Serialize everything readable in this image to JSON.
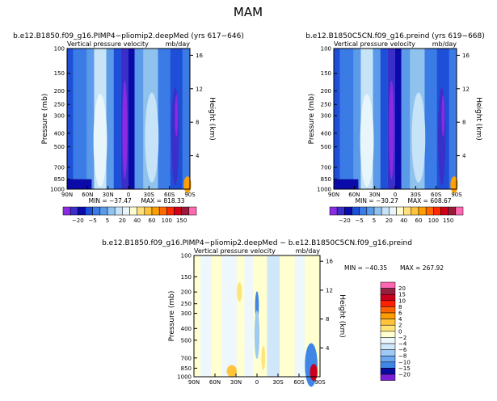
{
  "title": "MAM",
  "colors": {
    "diag": [
      "#8a2be2",
      "#3b2fc9",
      "#0a0aa8",
      "#1e4fd8",
      "#3b7be6",
      "#5b9ae8",
      "#8fc3ee",
      "#c6e3f7",
      "#e8f5fb",
      "#fffbd0",
      "#ffe07a",
      "#ffc23d",
      "#ffa000",
      "#ff6a00",
      "#ff2a00",
      "#d0001a",
      "#9a1a3a",
      "#ff69b4"
    ],
    "diff": [
      "#7a1fd6",
      "#3030c8",
      "#0a0a9e",
      "#1f5ad6",
      "#3f86e6",
      "#6ba7ee",
      "#9fcaf3",
      "#cfe7f9",
      "#eef8fc",
      "#ffffd0",
      "#ffe47a",
      "#ffc43c",
      "#ff9c00",
      "#ff6400",
      "#ff2000",
      "#c8001e",
      "#962040",
      "#ff66b2"
    ]
  },
  "chart_data": [
    {
      "type": "heatmap",
      "title": "b.e12.B1850.f09_g16.PIMP4−pliomip2.deepMed (yrs 617−646)",
      "subtitle_left": "Vertical pressure velocity",
      "subtitle_right": "mb/day",
      "ylabel": "Pressure (mb)",
      "ylabel_right": "Height (km)",
      "x_ticks": [
        "90N",
        "60N",
        "30N",
        "0",
        "30S",
        "60S",
        "90S"
      ],
      "y_ticks": [
        "100",
        "150",
        "200",
        "250",
        "300",
        "400",
        "500",
        "700",
        "850",
        "1000"
      ],
      "y_ticks_right": [
        "16",
        "12",
        "8",
        "4"
      ],
      "min_label": "MIN = −37.47",
      "max_label": "MAX = 818.33",
      "colorbar_labels": [
        "−20",
        "−5",
        "5",
        "20",
        "40",
        "60",
        "100",
        "150"
      ]
    },
    {
      "type": "heatmap",
      "title": "b.e12.B1850C5CN.f09_g16.preind (yrs 619−668)",
      "subtitle_left": "Vertical pressure velocity",
      "subtitle_right": "mb/day",
      "ylabel": "Pressure (mb)",
      "ylabel_right": "Height (km)",
      "x_ticks": [
        "90N",
        "60N",
        "30N",
        "0",
        "30S",
        "60S",
        "90S"
      ],
      "y_ticks": [
        "100",
        "150",
        "200",
        "250",
        "300",
        "400",
        "500",
        "700",
        "850",
        "1000"
      ],
      "y_ticks_right": [
        "16",
        "12",
        "8",
        "4"
      ],
      "min_label": "MIN = −30.27",
      "max_label": "MAX = 608.67",
      "colorbar_labels": [
        "−20",
        "−5",
        "5",
        "20",
        "40",
        "60",
        "100",
        "150"
      ]
    },
    {
      "type": "heatmap",
      "title": "b.e12.B1850.f09_g16.PIMP4−pliomip2.deepMed − b.e12.B1850C5CN.f09_g16.preind",
      "subtitle_left": "Vertical pressure velocity",
      "subtitle_right": "mb/day",
      "ylabel": "Pressure (mb)",
      "ylabel_right": "Height (km)",
      "x_ticks": [
        "90N",
        "60N",
        "30N",
        "0",
        "30S",
        "60S",
        "90S"
      ],
      "y_ticks": [
        "100",
        "150",
        "200",
        "250",
        "300",
        "400",
        "500",
        "700",
        "850",
        "1000"
      ],
      "y_ticks_right": [
        "16",
        "12",
        "8",
        "4"
      ],
      "min_label": "MIN = −40.35",
      "max_label": "MAX = 267.92",
      "colorbar_labels": [
        "20",
        "15",
        "10",
        "8",
        "6",
        "4",
        "2",
        "0",
        "−2",
        "−4",
        "−6",
        "−8",
        "−10",
        "−15",
        "−20"
      ]
    }
  ]
}
